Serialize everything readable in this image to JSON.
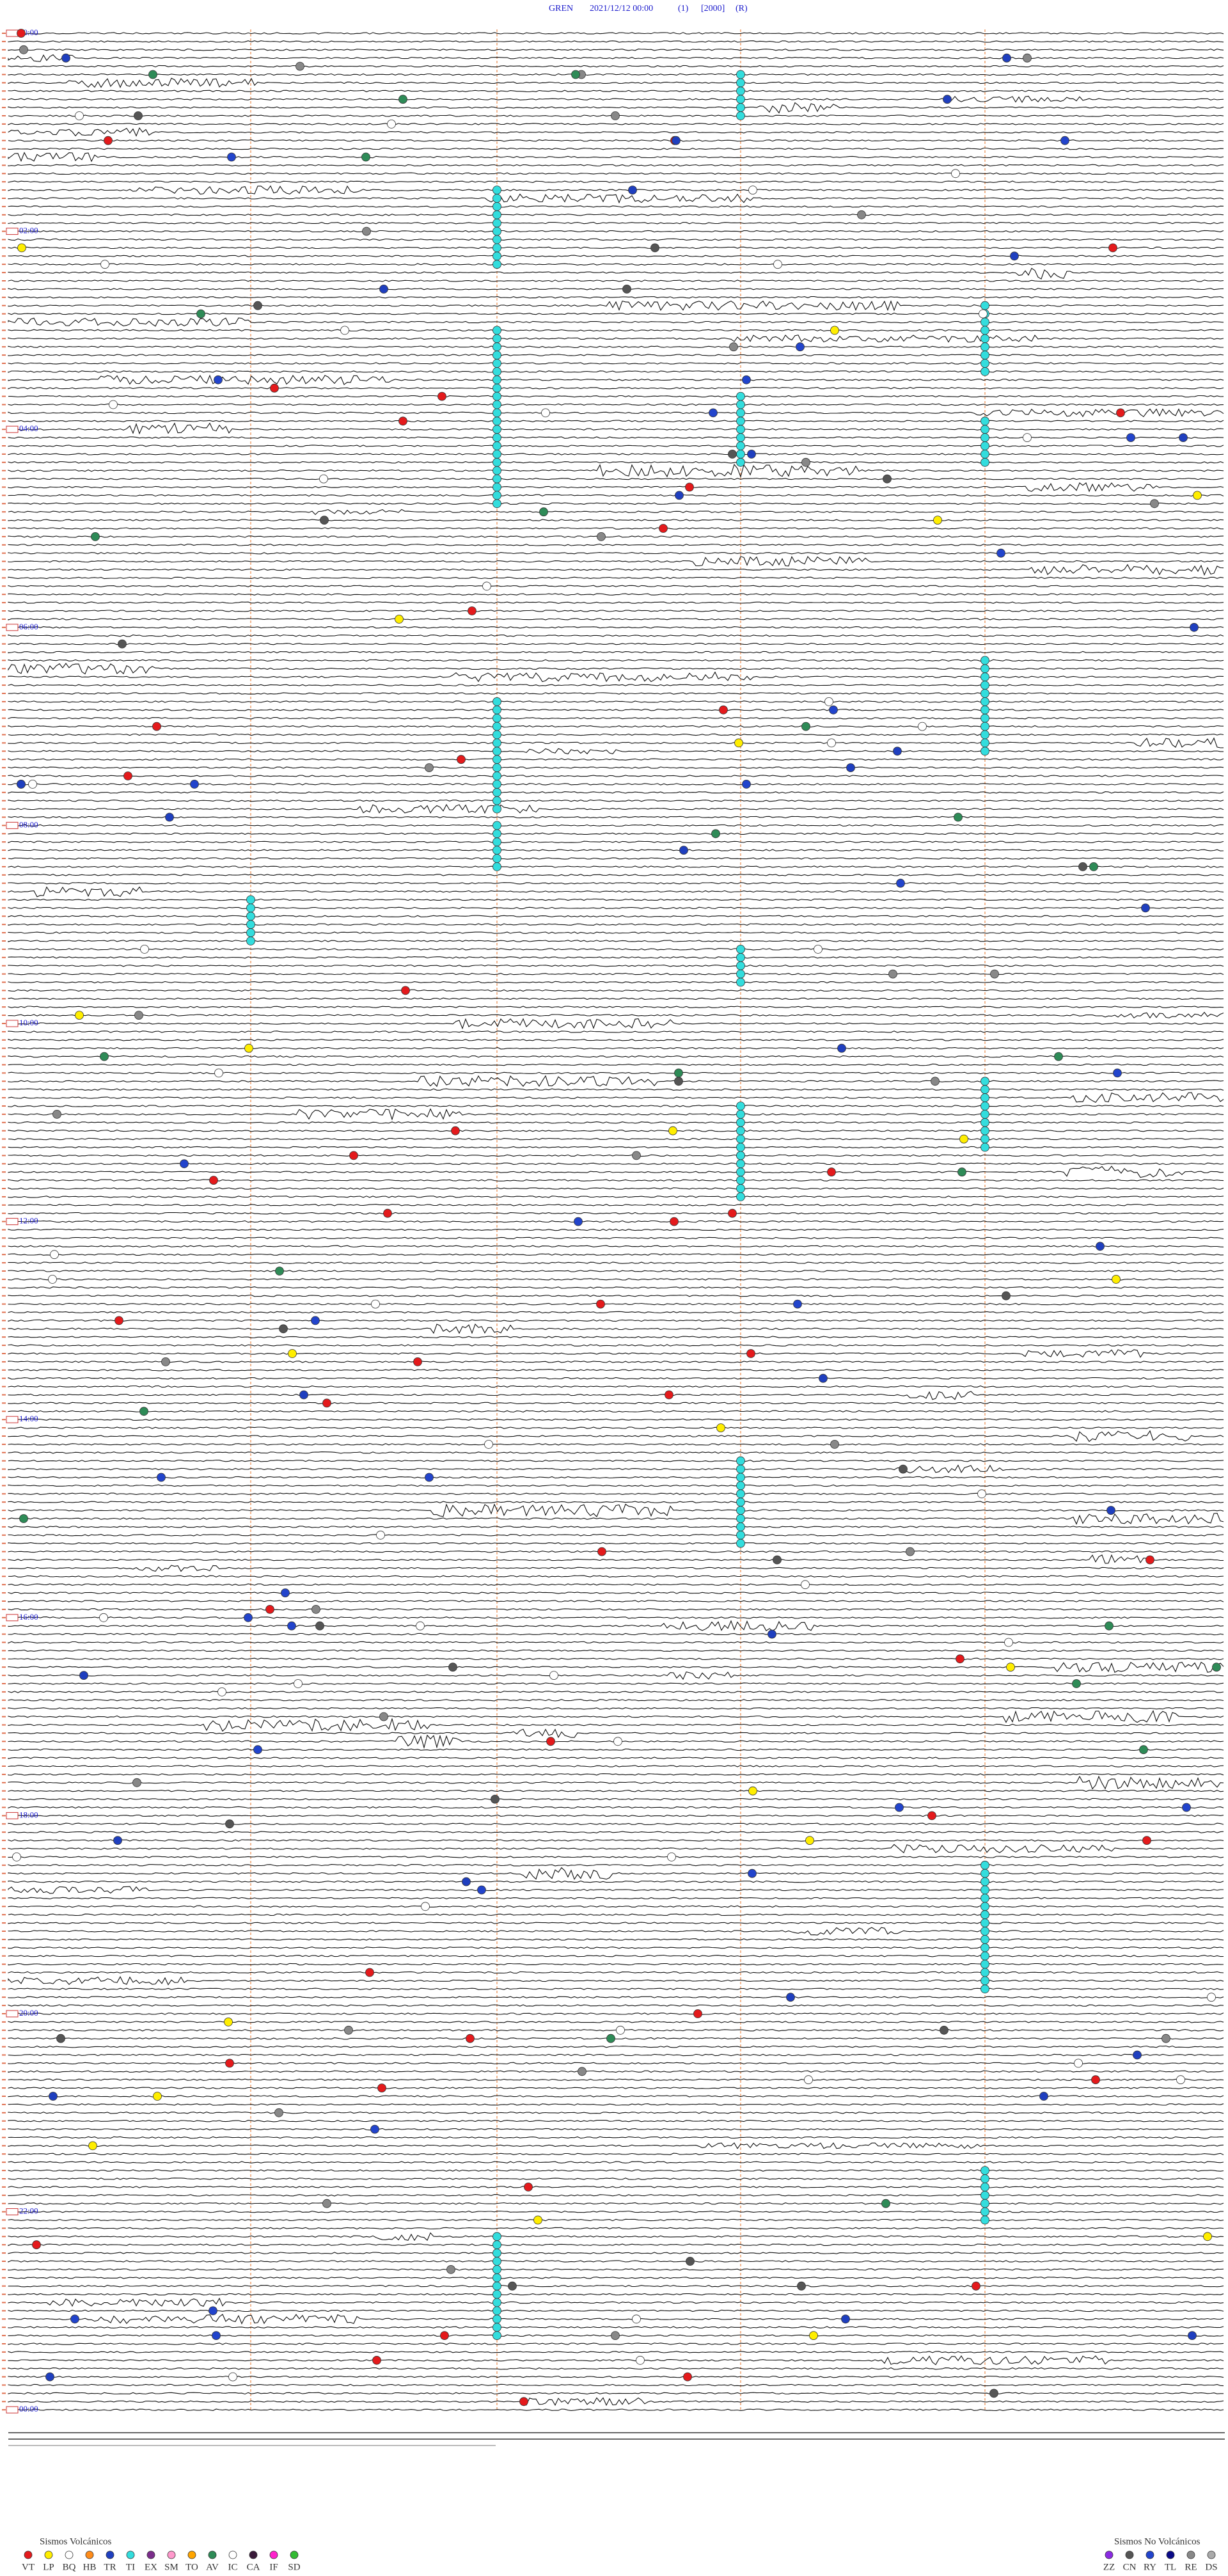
{
  "header": {
    "station": "GREN",
    "datetime": "2021/12/12 00:00",
    "channel": "(1)",
    "scale": "[2000]",
    "mode": "(R)"
  },
  "time_labels": [
    "00:00",
    "02:00",
    "04:00",
    "06:00",
    "08:00",
    "10:00",
    "12:00",
    "14:00",
    "16:00",
    "18:00",
    "20:00",
    "22:00",
    "00:00"
  ],
  "legend": {
    "volcanic": {
      "title": "Sismos Volcánicos",
      "codes": [
        "VT",
        "LP",
        "BQ",
        "HB",
        "TR",
        "TI",
        "EX",
        "SM",
        "TO",
        "AV",
        "IC",
        "CA",
        "IF",
        "SD"
      ],
      "colors": [
        "#e41a1c",
        "#ffee00",
        "#ffffff",
        "#ff8c1a",
        "#1f3fbf",
        "#33dddd",
        "#7b2d8b",
        "#ff99cc",
        "#ffa500",
        "#2e8b57",
        "#ffffff",
        "#3a1a3a",
        "#ff22cc",
        "#33bb33"
      ]
    },
    "non_volcanic": {
      "title": "Sismos No Volcánicos",
      "codes": [
        "ZZ",
        "CN",
        "RY",
        "TL",
        "RE",
        "DS"
      ],
      "colors": [
        "#8a2be2",
        "#555555",
        "#2244cc",
        "#0a0a88",
        "#888888",
        "#aaaaaa"
      ]
    }
  }
}
